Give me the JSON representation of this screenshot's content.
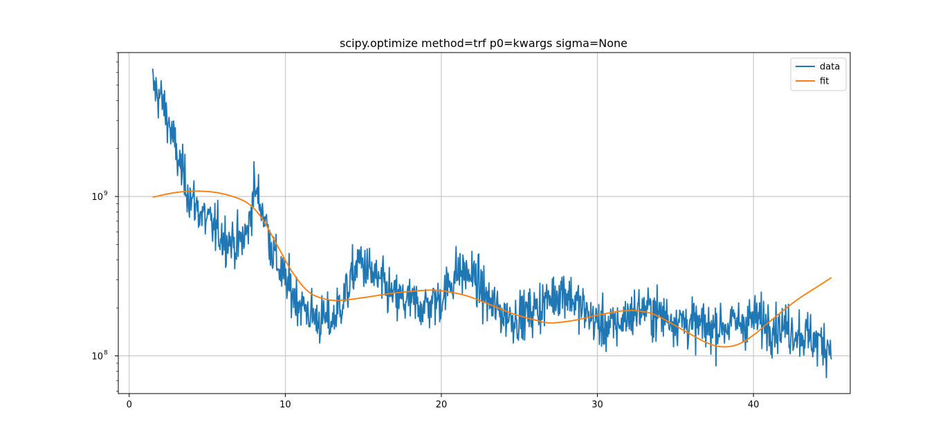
{
  "chart_data": {
    "type": "line",
    "title": "scipy.optimize method=trf p0=kwargs sigma=None",
    "xlabel": "",
    "ylabel": "",
    "xlim": [
      -0.7,
      46.2
    ],
    "ylim": [
      58000000,
      8000000000
    ],
    "yscale": "log",
    "grid": true,
    "legend_position": "top-right",
    "x_ticks": [
      0,
      10,
      20,
      30,
      40
    ],
    "x_tick_labels": [
      "0",
      "10",
      "20",
      "30",
      "40"
    ],
    "y_ticks": [
      100000000,
      1000000000
    ],
    "y_tick_labels": [
      {
        "base": "10",
        "exp": "8"
      },
      {
        "base": "10",
        "exp": "9"
      }
    ],
    "series": [
      {
        "name": "data",
        "color": "#1f77b4",
        "style": "noisy",
        "x_range": [
          1.5,
          45.0
        ],
        "n_points": 1200,
        "trend": {
          "x": [
            1.5,
            2.0,
            2.5,
            3.0,
            3.5,
            4.0,
            5.0,
            6.0,
            7.0,
            7.6,
            8.0,
            8.6,
            9.2,
            10.0,
            11.0,
            12.0,
            13.0,
            14.0,
            14.7,
            15.5,
            17.0,
            19.0,
            20.0,
            21.0,
            22.0,
            23.0,
            24.0,
            25.0,
            26.0,
            27.0,
            27.8,
            29.0,
            30.0,
            31.0,
            32.0,
            33.0,
            34.0,
            35.0,
            36.0,
            37.0,
            38.0,
            39.0,
            40.0,
            41.0,
            42.0,
            43.0,
            44.0,
            45.0
          ],
          "y": [
            5000000000,
            4200000000,
            3000000000,
            1900000000,
            1300000000,
            950000000,
            700000000,
            560000000,
            500000000,
            600000000,
            1150000000,
            800000000,
            450000000,
            290000000,
            210000000,
            170000000,
            165000000,
            260000000,
            400000000,
            330000000,
            230000000,
            205000000,
            230000000,
            340000000,
            320000000,
            220000000,
            180000000,
            175000000,
            195000000,
            230000000,
            260000000,
            200000000,
            160000000,
            150000000,
            180000000,
            200000000,
            180000000,
            170000000,
            160000000,
            150000000,
            155000000,
            160000000,
            170000000,
            160000000,
            150000000,
            140000000,
            125000000,
            115000000
          ]
        }
      },
      {
        "name": "fit",
        "color": "#ff7f0e",
        "x": [
          1.5,
          3.0,
          4.5,
          6.0,
          7.5,
          8.5,
          9.5,
          10.5,
          11.5,
          12.5,
          13.5,
          15.0,
          17.0,
          19.0,
          20.0,
          21.5,
          23.0,
          24.5,
          26.0,
          27.0,
          28.5,
          30.0,
          31.5,
          32.5,
          33.5,
          34.5,
          35.5,
          37.0,
          38.0,
          39.0,
          40.0,
          41.0,
          42.0,
          43.0,
          44.0,
          45.0
        ],
        "y": [
          990000000,
          1060000000,
          1080000000,
          1040000000,
          920000000,
          730000000,
          490000000,
          330000000,
          252000000,
          228000000,
          223000000,
          232000000,
          248000000,
          258000000,
          256000000,
          240000000,
          212000000,
          185000000,
          168000000,
          161000000,
          167000000,
          180000000,
          191000000,
          192000000,
          184000000,
          165000000,
          145000000,
          121000000,
          114000000,
          118000000,
          135000000,
          163000000,
          196000000,
          232000000,
          268000000,
          310000000
        ]
      }
    ]
  }
}
